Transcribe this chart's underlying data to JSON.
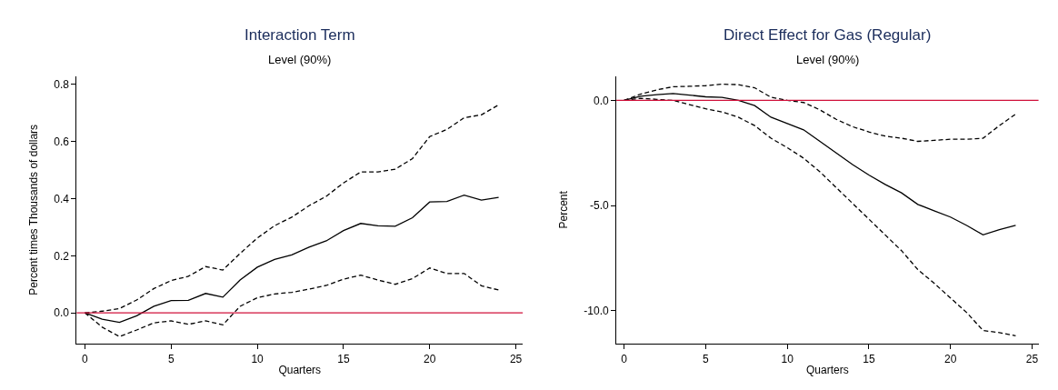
{
  "chart_data": [
    {
      "type": "line",
      "title": "Interaction Term",
      "subtitle": "Level (90%)",
      "xlabel": "Quarters",
      "ylabel": "Percent times Thousands of dollars",
      "x": [
        0,
        1,
        2,
        3,
        4,
        5,
        6,
        7,
        8,
        9,
        10,
        11,
        12,
        13,
        14,
        15,
        16,
        17,
        18,
        19,
        20,
        21,
        22,
        23,
        24
      ],
      "series": [
        {
          "color": "#000000",
          "line_style": "dashed",
          "values": [
            0,
            0.006,
            0.015,
            0.045,
            0.085,
            0.113,
            0.128,
            0.162,
            0.15,
            0.208,
            0.262,
            0.305,
            0.335,
            0.375,
            0.408,
            0.455,
            0.493,
            0.493,
            0.503,
            0.54,
            0.617,
            0.642,
            0.683,
            0.693,
            0.728
          ]
        },
        {
          "color": "#000000",
          "line_style": "solid",
          "values": [
            0,
            -0.022,
            -0.033,
            -0.01,
            0.023,
            0.043,
            0.044,
            0.068,
            0.055,
            0.115,
            0.16,
            0.187,
            0.203,
            0.23,
            0.252,
            0.288,
            0.313,
            0.305,
            0.303,
            0.333,
            0.388,
            0.39,
            0.412,
            0.395,
            0.404
          ]
        },
        {
          "color": "#000000",
          "line_style": "dashed",
          "values": [
            0,
            -0.05,
            -0.083,
            -0.06,
            -0.035,
            -0.028,
            -0.04,
            -0.028,
            -0.042,
            0.023,
            0.053,
            0.066,
            0.072,
            0.083,
            0.096,
            0.118,
            0.132,
            0.115,
            0.1,
            0.12,
            0.157,
            0.138,
            0.138,
            0.095,
            0.08
          ]
        }
      ],
      "xlim": [
        -0.48,
        25.4
      ],
      "xticks": [
        0,
        5,
        10,
        15,
        20,
        25
      ],
      "ylim": [
        -0.108,
        0.829
      ],
      "yticks": [
        {
          "value": 0,
          "label": "0.0"
        },
        {
          "value": 0.2,
          "label": "0.2"
        },
        {
          "value": 0.4,
          "label": "0.4"
        },
        {
          "value": 0.6,
          "label": "0.6"
        },
        {
          "value": 0.8,
          "label": "0.8"
        }
      ],
      "ref_lines": [
        {
          "axis": "y",
          "value": 0,
          "color": "#d0103a"
        }
      ]
    },
    {
      "type": "line",
      "title": "Direct Effect for Gas (Regular)",
      "subtitle": "Level (90%)",
      "xlabel": "Quarters",
      "ylabel": "Percent",
      "x": [
        0,
        1,
        2,
        3,
        4,
        5,
        6,
        7,
        8,
        9,
        10,
        11,
        12,
        13,
        14,
        15,
        16,
        17,
        18,
        19,
        20,
        21,
        22,
        23,
        24
      ],
      "series": [
        {
          "color": "#000000",
          "line_style": "dashed",
          "values": [
            0,
            0.3,
            0.5,
            0.65,
            0.67,
            0.7,
            0.77,
            0.75,
            0.6,
            0.15,
            0.0,
            -0.1,
            -0.45,
            -0.9,
            -1.25,
            -1.5,
            -1.7,
            -1.8,
            -1.95,
            -1.9,
            -1.85,
            -1.85,
            -1.8,
            -1.2,
            -0.65
          ]
        },
        {
          "color": "#000000",
          "line_style": "solid",
          "values": [
            0,
            0.2,
            0.27,
            0.33,
            0.25,
            0.17,
            0.14,
            0.0,
            -0.25,
            -0.8,
            -1.1,
            -1.4,
            -1.95,
            -2.5,
            -3.05,
            -3.55,
            -4.0,
            -4.4,
            -4.95,
            -5.25,
            -5.55,
            -5.95,
            -6.4,
            -6.15,
            -5.95
          ]
        },
        {
          "color": "#000000",
          "line_style": "dashed",
          "values": [
            0,
            0.1,
            0.05,
            0.0,
            -0.2,
            -0.4,
            -0.55,
            -0.8,
            -1.2,
            -1.8,
            -2.25,
            -2.75,
            -3.4,
            -4.15,
            -4.9,
            -5.65,
            -6.4,
            -7.15,
            -8.05,
            -8.7,
            -9.4,
            -10.1,
            -10.95,
            -11.05,
            -11.2
          ]
        }
      ],
      "xlim": [
        -0.48,
        25.4
      ],
      "xticks": [
        0,
        5,
        10,
        15,
        20,
        25
      ],
      "ylim": [
        -11.58,
        1.16
      ],
      "yticks": [
        {
          "value": -10,
          "label": "-10.0"
        },
        {
          "value": -5,
          "label": "-5.0"
        },
        {
          "value": 0,
          "label": "0.0"
        }
      ],
      "ref_lines": [
        {
          "axis": "y",
          "value": 0,
          "color": "#d0103a"
        }
      ]
    }
  ]
}
